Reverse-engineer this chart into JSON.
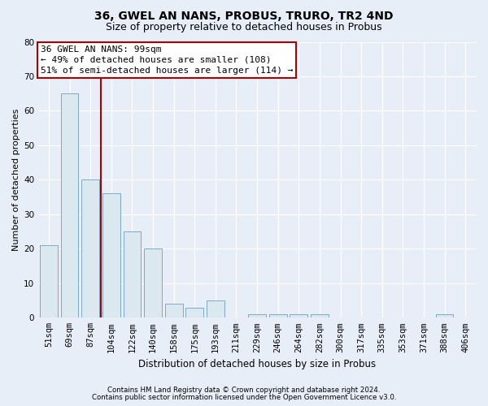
{
  "title": "36, GWEL AN NANS, PROBUS, TRURO, TR2 4ND",
  "subtitle": "Size of property relative to detached houses in Probus",
  "xlabel": "Distribution of detached houses by size in Probus",
  "ylabel": "Number of detached properties",
  "categories": [
    "51sqm",
    "69sqm",
    "87sqm",
    "104sqm",
    "122sqm",
    "140sqm",
    "158sqm",
    "175sqm",
    "193sqm",
    "211sqm",
    "229sqm",
    "246sqm",
    "264sqm",
    "282sqm",
    "300sqm",
    "317sqm",
    "335sqm",
    "353sqm",
    "371sqm",
    "388sqm",
    "406sqm"
  ],
  "values": [
    21,
    65,
    40,
    36,
    25,
    20,
    4,
    3,
    5,
    0,
    1,
    1,
    1,
    1,
    0,
    0,
    0,
    0,
    0,
    1,
    0
  ],
  "bar_color": "#dce8f0",
  "bar_edge_color": "#7aaac8",
  "vline_color": "#aa0000",
  "annotation_text": "36 GWEL AN NANS: 99sqm\n← 49% of detached houses are smaller (108)\n51% of semi-detached houses are larger (114) →",
  "annotation_box_facecolor": "#ffffff",
  "annotation_box_edgecolor": "#aa0000",
  "ylim": [
    0,
    80
  ],
  "yticks": [
    0,
    10,
    20,
    30,
    40,
    50,
    60,
    70,
    80
  ],
  "bg_color": "#e8eef8",
  "grid_color": "#ffffff",
  "footer_line1": "Contains HM Land Registry data © Crown copyright and database right 2024.",
  "footer_line2": "Contains public sector information licensed under the Open Government Licence v3.0.",
  "title_fontsize": 10,
  "subtitle_fontsize": 9,
  "xlabel_fontsize": 8.5,
  "ylabel_fontsize": 8,
  "annotation_fontsize": 8,
  "tick_fontsize": 7.5,
  "footer_fontsize": 6.2
}
